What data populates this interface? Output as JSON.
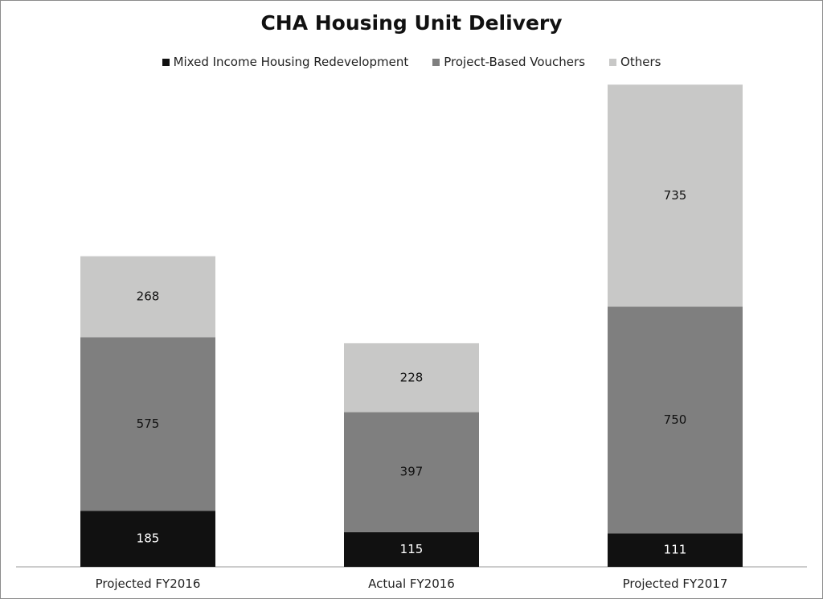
{
  "chart_data": {
    "type": "bar",
    "stacked": true,
    "title": "CHA Housing Unit Delivery",
    "categories": [
      "Projected FY2016",
      "Actual FY2016",
      "Projected FY2017"
    ],
    "series": [
      {
        "name": "Mixed Income Housing Redevelopment",
        "values": [
          185,
          115,
          111
        ],
        "color": "#111111",
        "label_color": "#ffffff"
      },
      {
        "name": "Project-Based Vouchers",
        "values": [
          575,
          397,
          750
        ],
        "color": "#7f7f7f",
        "label_color": "#111111"
      },
      {
        "name": "Others",
        "values": [
          268,
          228,
          735
        ],
        "color": "#c8c8c7",
        "label_color": "#111111"
      }
    ],
    "ylim": [
      0,
      1610
    ],
    "grid": false,
    "legend": "top",
    "data_labels": true
  }
}
